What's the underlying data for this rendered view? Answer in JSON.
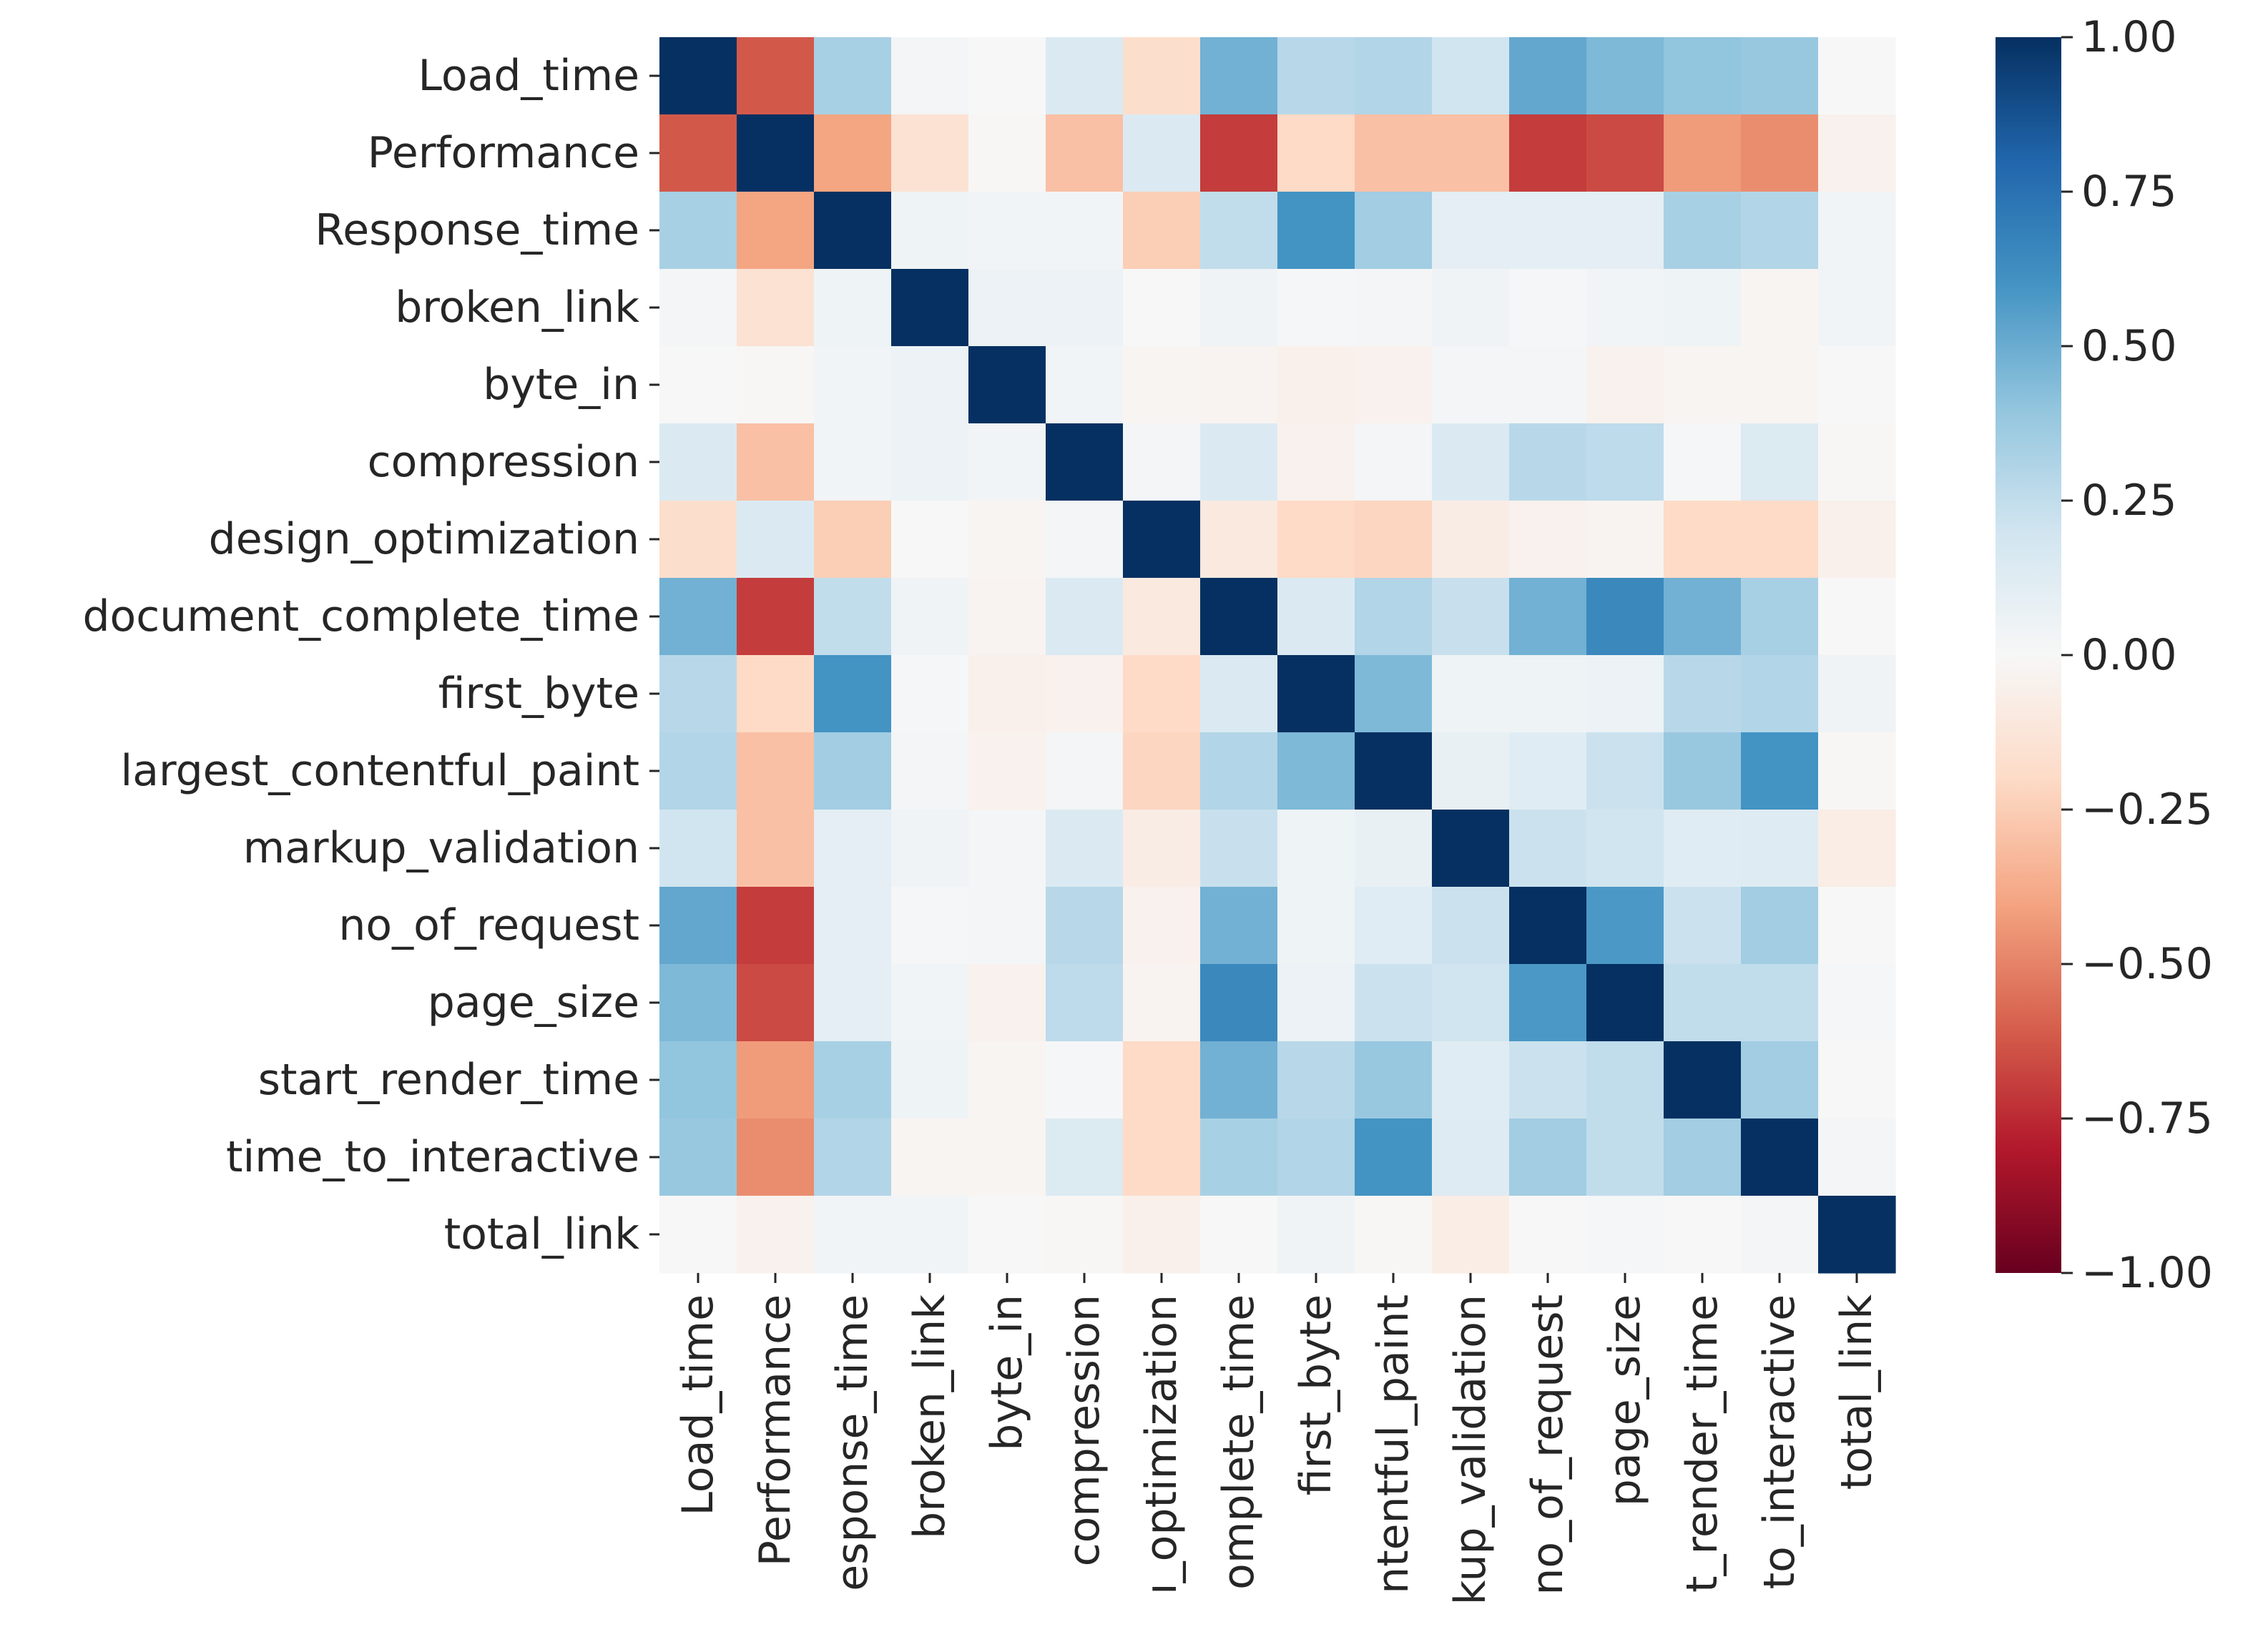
{
  "chart_data": {
    "type": "heatmap",
    "title": "",
    "xlabel": "",
    "ylabel": "",
    "variables": [
      "Load_time",
      "Performance",
      "Response_time",
      "broken_link",
      "byte_in",
      "compression",
      "design_optimization",
      "document_complete_time",
      "first_byte",
      "largest_contentful_paint",
      "markup_validation",
      "no_of_request",
      "page_size",
      "start_render_time",
      "time_to_interactive",
      "total_link"
    ],
    "x_tick_labels": [
      "Load_time",
      "Performance",
      "esponse_time",
      "broken_link",
      "byte_in",
      "compression",
      "ı_optimization",
      "omplete_time",
      "first_byte",
      "ntentful_paint",
      "kup_validation",
      "no_of_request",
      "page_size",
      "t_render_time",
      "to_interactive",
      "total_link"
    ],
    "matrix": [
      [
        1.0,
        -0.62,
        0.33,
        0.02,
        0.0,
        0.15,
        -0.18,
        0.48,
        0.28,
        0.3,
        0.2,
        0.52,
        0.45,
        0.4,
        0.38,
        0.0
      ],
      [
        -0.62,
        1.0,
        -0.4,
        -0.15,
        -0.01,
        -0.3,
        0.15,
        -0.7,
        -0.2,
        -0.3,
        -0.3,
        -0.7,
        -0.66,
        -0.43,
        -0.47,
        -0.04
      ],
      [
        0.33,
        -0.4,
        1.0,
        0.05,
        0.03,
        0.03,
        -0.25,
        0.25,
        0.6,
        0.35,
        0.1,
        0.1,
        0.1,
        0.33,
        0.3,
        0.03
      ],
      [
        0.02,
        -0.15,
        0.05,
        1.0,
        0.06,
        0.06,
        0.0,
        0.04,
        0.01,
        0.02,
        0.04,
        0.01,
        0.03,
        0.05,
        -0.02,
        0.03
      ],
      [
        0.0,
        -0.01,
        0.03,
        0.06,
        1.0,
        0.03,
        -0.02,
        -0.03,
        -0.05,
        -0.04,
        0.02,
        0.02,
        -0.04,
        -0.02,
        -0.02,
        0.0
      ],
      [
        0.15,
        -0.3,
        0.03,
        0.06,
        0.03,
        1.0,
        0.02,
        0.15,
        -0.04,
        0.02,
        0.15,
        0.28,
        0.26,
        0.01,
        0.14,
        -0.01
      ],
      [
        -0.18,
        0.15,
        -0.25,
        0.0,
        -0.02,
        0.02,
        1.0,
        -0.1,
        -0.2,
        -0.22,
        -0.08,
        -0.04,
        -0.03,
        -0.2,
        -0.2,
        -0.05
      ],
      [
        0.48,
        -0.7,
        0.25,
        0.04,
        -0.03,
        0.15,
        -0.1,
        1.0,
        0.15,
        0.3,
        0.23,
        0.48,
        0.65,
        0.48,
        0.33,
        0.0
      ],
      [
        0.28,
        -0.2,
        0.6,
        0.01,
        -0.05,
        -0.04,
        -0.2,
        0.15,
        1.0,
        0.45,
        0.05,
        0.05,
        0.06,
        0.28,
        0.3,
        0.04
      ],
      [
        0.3,
        -0.3,
        0.35,
        0.02,
        -0.04,
        0.02,
        -0.22,
        0.3,
        0.45,
        1.0,
        0.08,
        0.12,
        0.22,
        0.38,
        0.6,
        -0.01
      ],
      [
        0.2,
        -0.3,
        0.1,
        0.04,
        0.02,
        0.15,
        -0.08,
        0.23,
        0.05,
        0.08,
        1.0,
        0.22,
        0.2,
        0.12,
        0.13,
        -0.07
      ],
      [
        0.52,
        -0.7,
        0.1,
        0.01,
        0.02,
        0.28,
        -0.04,
        0.48,
        0.05,
        0.12,
        0.22,
        1.0,
        0.58,
        0.22,
        0.35,
        0.0
      ],
      [
        0.45,
        -0.66,
        0.1,
        0.03,
        -0.04,
        0.26,
        -0.03,
        0.65,
        0.06,
        0.22,
        0.2,
        0.58,
        1.0,
        0.25,
        0.25,
        0.01
      ],
      [
        0.4,
        -0.43,
        0.33,
        0.05,
        -0.02,
        0.01,
        -0.2,
        0.48,
        0.28,
        0.38,
        0.12,
        0.22,
        0.25,
        1.0,
        0.35,
        0.0
      ],
      [
        0.38,
        -0.47,
        0.3,
        -0.02,
        -0.02,
        0.14,
        -0.2,
        0.33,
        0.3,
        0.6,
        0.13,
        0.35,
        0.25,
        0.35,
        1.0,
        0.02
      ],
      [
        0.0,
        -0.04,
        0.03,
        0.03,
        0.0,
        -0.01,
        -0.05,
        0.0,
        0.04,
        -0.01,
        -0.07,
        0.0,
        0.01,
        0.0,
        0.02,
        1.0
      ]
    ],
    "colorbar": {
      "colormap": "RdBu",
      "vmin": -1.0,
      "vmax": 1.0,
      "ticks": [
        1.0,
        0.75,
        0.5,
        0.25,
        0.0,
        -0.25,
        -0.5,
        -0.75,
        -1.0
      ],
      "tick_labels": [
        "1.00",
        "0.75",
        "0.50",
        "0.25",
        "0.00",
        "−0.25",
        "−0.50",
        "−0.75",
        "−1.00"
      ],
      "stops": [
        "#67001f",
        "#b2182b",
        "#d6604d",
        "#f4a582",
        "#fddbc7",
        "#f7f7f7",
        "#d1e5f0",
        "#92c5de",
        "#4393c3",
        "#2166ac",
        "#053061"
      ]
    }
  }
}
